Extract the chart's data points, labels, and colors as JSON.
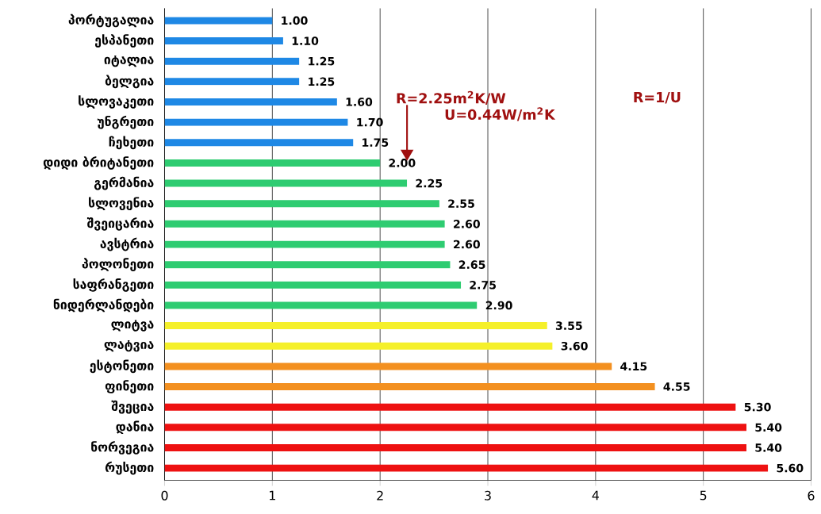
{
  "chart_data": {
    "type": "bar",
    "orientation": "horizontal",
    "categories": [
      "პორტუგალია",
      "ესპანეთი",
      "იტალია",
      "ბელგია",
      "სლოვაკეთი",
      "უნგრეთი",
      "ჩეხეთი",
      "დიდი ბრიტანეთი",
      "გერმანია",
      "სლოვენია",
      "შვეიცარია",
      "ავსტრია",
      "პოლონეთი",
      "საფრანგეთი",
      "ნიდერლანდები",
      "ლიტვა",
      "ლატვია",
      "ესტონეთი",
      "ფინეთი",
      "შვეცია",
      "დანია",
      "ნორვეგია",
      "რუსეთი"
    ],
    "values": [
      1.0,
      1.1,
      1.25,
      1.25,
      1.6,
      1.7,
      1.75,
      2.0,
      2.25,
      2.55,
      2.6,
      2.6,
      2.65,
      2.75,
      2.9,
      3.55,
      3.6,
      4.15,
      4.55,
      5.3,
      5.4,
      5.4,
      5.6
    ],
    "value_labels": [
      "1.00",
      "1.10",
      "1.25",
      "1.25",
      "1.60",
      "1.70",
      "1.75",
      "2.00",
      "2.25",
      "2.55",
      "2.60",
      "2.60",
      "2.65",
      "2.75",
      "2.90",
      "3.55",
      "3.60",
      "4.15",
      "4.55",
      "5.30",
      "5.40",
      "5.40",
      "5.60"
    ],
    "colors": [
      "#1e88e5",
      "#1e88e5",
      "#1e88e5",
      "#1e88e5",
      "#1e88e5",
      "#1e88e5",
      "#1e88e5",
      "#2ecc71",
      "#2ecc71",
      "#2ecc71",
      "#2ecc71",
      "#2ecc71",
      "#2ecc71",
      "#2ecc71",
      "#2ecc71",
      "#f5f02a",
      "#f5f02a",
      "#f39020",
      "#f39020",
      "#ee1111",
      "#ee1111",
      "#ee1111",
      "#ee1111"
    ],
    "xlim": [
      0,
      6
    ],
    "xticks": [
      0,
      1,
      2,
      3,
      4,
      5,
      6
    ],
    "grid": "x",
    "annotations": [
      "R=2.25m$^{2}$K/W",
      "R=1/U",
      "U=0.44W/m$^{2}$K"
    ]
  }
}
